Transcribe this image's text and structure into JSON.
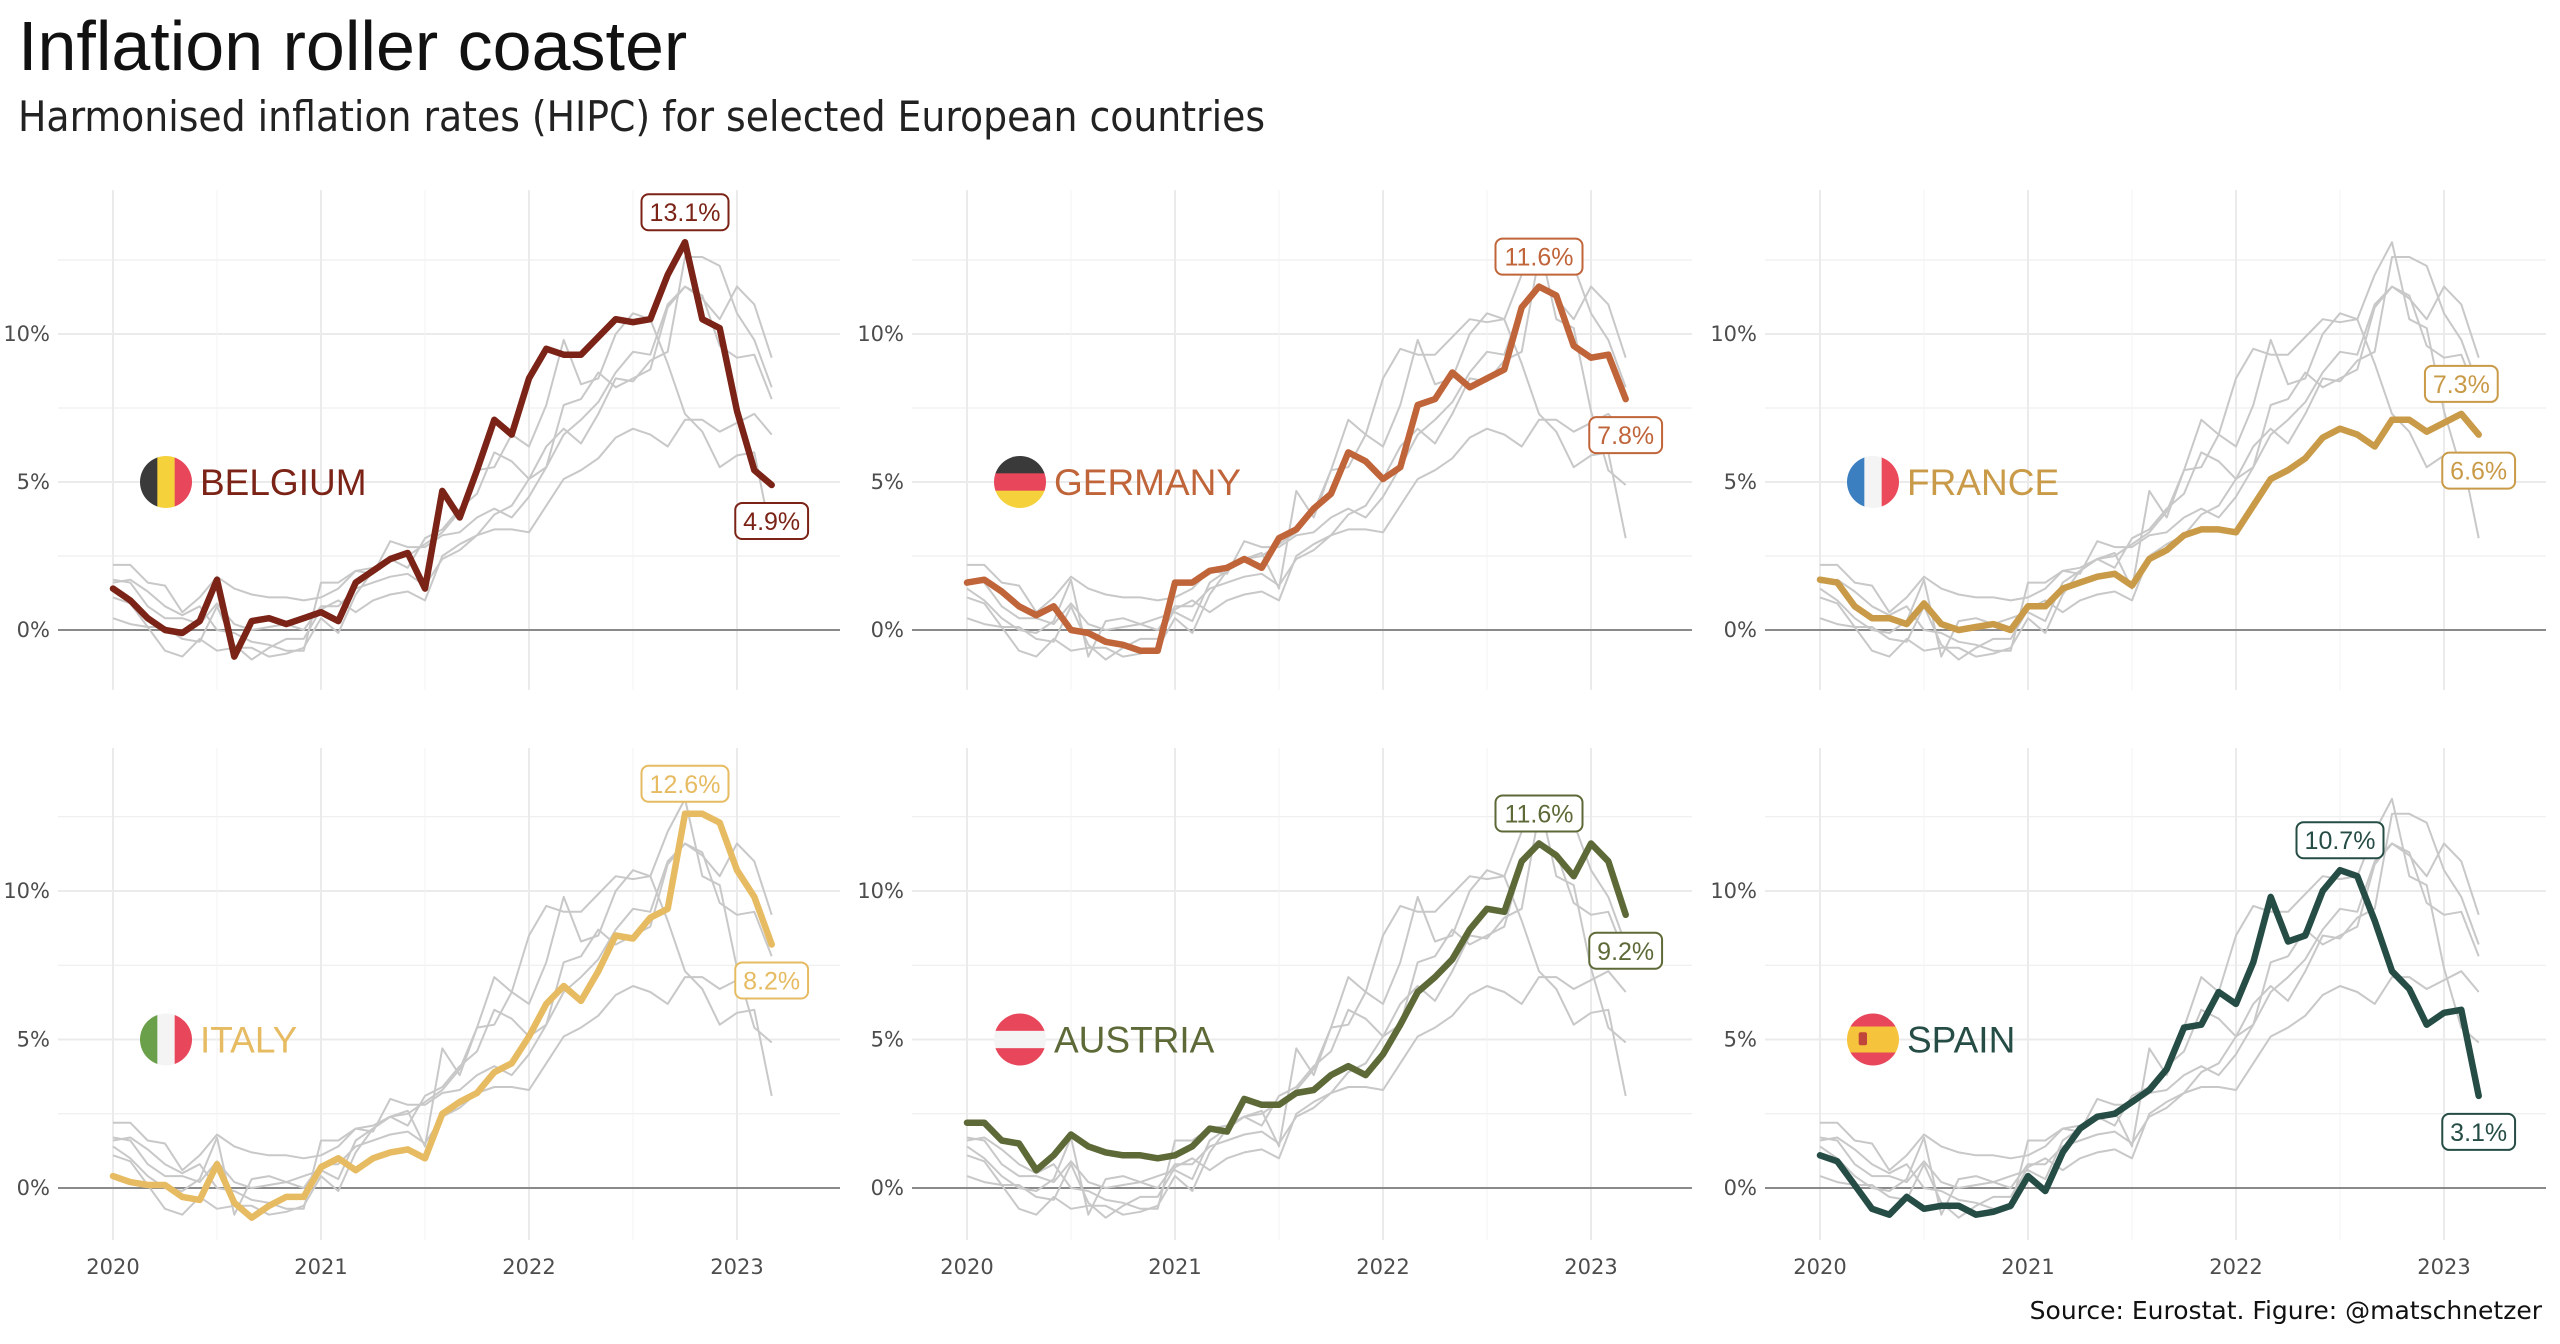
{
  "title": "Inflation roller coaster",
  "subtitle": "Harmonised inflation rates (HIPC) for selected European countries",
  "caption": "Source: Eurostat. Figure: @matschnetzer",
  "chart_data": {
    "type": "line",
    "layout": "small-multiples 2x3",
    "x_unit": "month",
    "x_start": "2020-01",
    "x_end": "2023-03",
    "x_ticks": [
      "2020",
      "2021",
      "2022",
      "2023"
    ],
    "y_ticks": [
      "0%",
      "5%",
      "10%"
    ],
    "ylim": [
      -1.5,
      14.5
    ],
    "grid": true,
    "legend": "none",
    "background_series_color": "#c8c8c8",
    "series": [
      {
        "name": "BELGIUM",
        "flag": "belgium",
        "color": "#7b2316",
        "values": [
          1.4,
          1.0,
          0.4,
          0.0,
          -0.1,
          0.3,
          1.7,
          -0.9,
          0.3,
          0.4,
          0.2,
          0.4,
          0.6,
          0.3,
          1.6,
          2.0,
          2.4,
          2.6,
          1.4,
          4.7,
          3.8,
          5.4,
          7.1,
          6.6,
          8.5,
          9.5,
          9.3,
          9.3,
          9.9,
          10.5,
          10.4,
          10.5,
          12.0,
          13.1,
          10.5,
          10.2,
          7.4,
          5.4,
          4.9
        ],
        "labels": [
          {
            "index": 33,
            "text": "13.1%"
          },
          {
            "index": 38,
            "text": "4.9%"
          }
        ]
      },
      {
        "name": "GERMANY",
        "flag": "germany",
        "color": "#c0643a",
        "values": [
          1.6,
          1.7,
          1.3,
          0.8,
          0.5,
          0.8,
          0.0,
          -0.1,
          -0.4,
          -0.5,
          -0.7,
          -0.7,
          1.6,
          1.6,
          2.0,
          2.1,
          2.4,
          2.1,
          3.1,
          3.4,
          4.1,
          4.6,
          6.0,
          5.7,
          5.1,
          5.5,
          7.6,
          7.8,
          8.7,
          8.2,
          8.5,
          8.8,
          10.9,
          11.6,
          11.3,
          9.6,
          9.2,
          9.3,
          7.8
        ],
        "labels": [
          {
            "index": 33,
            "text": "11.6%"
          },
          {
            "index": 38,
            "text": "7.8%"
          }
        ]
      },
      {
        "name": "FRANCE",
        "flag": "france",
        "color": "#c99a47",
        "values": [
          1.7,
          1.6,
          0.8,
          0.4,
          0.4,
          0.2,
          0.9,
          0.2,
          0.0,
          0.1,
          0.2,
          0.0,
          0.8,
          0.8,
          1.4,
          1.6,
          1.8,
          1.9,
          1.5,
          2.4,
          2.7,
          3.2,
          3.4,
          3.4,
          3.3,
          4.2,
          5.1,
          5.4,
          5.8,
          6.5,
          6.8,
          6.6,
          6.2,
          7.1,
          7.1,
          6.7,
          7.0,
          7.3,
          6.6
        ],
        "labels": [
          {
            "index": 37,
            "text": "7.3%"
          },
          {
            "index": 38,
            "text": "6.6%"
          }
        ]
      },
      {
        "name": "ITALY",
        "flag": "italy",
        "color": "#e6bb62",
        "values": [
          0.4,
          0.2,
          0.1,
          0.1,
          -0.3,
          -0.4,
          0.8,
          -0.5,
          -1.0,
          -0.6,
          -0.3,
          -0.3,
          0.7,
          1.0,
          0.6,
          1.0,
          1.2,
          1.3,
          1.0,
          2.5,
          2.9,
          3.2,
          3.9,
          4.2,
          5.1,
          6.2,
          6.8,
          6.3,
          7.3,
          8.5,
          8.4,
          9.1,
          9.4,
          12.6,
          12.6,
          12.3,
          10.7,
          9.8,
          8.2
        ],
        "labels": [
          {
            "index": 33,
            "text": "12.6%"
          },
          {
            "index": 38,
            "text": "8.2%"
          }
        ]
      },
      {
        "name": "AUSTRIA",
        "flag": "austria",
        "color": "#5d6a38",
        "values": [
          2.2,
          2.2,
          1.6,
          1.5,
          0.6,
          1.1,
          1.8,
          1.4,
          1.2,
          1.1,
          1.1,
          1.0,
          1.1,
          1.4,
          2.0,
          1.9,
          3.0,
          2.8,
          2.8,
          3.2,
          3.3,
          3.8,
          4.1,
          3.8,
          4.5,
          5.5,
          6.6,
          7.1,
          7.7,
          8.7,
          9.4,
          9.3,
          11.0,
          11.6,
          11.2,
          10.5,
          11.6,
          11.0,
          9.2
        ],
        "labels": [
          {
            "index": 33,
            "text": "11.6%"
          },
          {
            "index": 38,
            "text": "9.2%"
          }
        ]
      },
      {
        "name": "SPAIN",
        "flag": "spain",
        "color": "#264d45",
        "values": [
          1.1,
          0.9,
          0.1,
          -0.7,
          -0.9,
          -0.3,
          -0.7,
          -0.6,
          -0.6,
          -0.9,
          -0.8,
          -0.6,
          0.4,
          -0.1,
          1.2,
          2.0,
          2.4,
          2.5,
          2.9,
          3.3,
          4.0,
          5.4,
          5.5,
          6.6,
          6.2,
          7.6,
          9.8,
          8.3,
          8.5,
          10.0,
          10.7,
          10.5,
          9.0,
          7.3,
          6.7,
          5.5,
          5.9,
          6.0,
          3.1
        ],
        "labels": [
          {
            "index": 30,
            "text": "10.7%"
          },
          {
            "index": 38,
            "text": "3.1%"
          }
        ]
      }
    ]
  }
}
